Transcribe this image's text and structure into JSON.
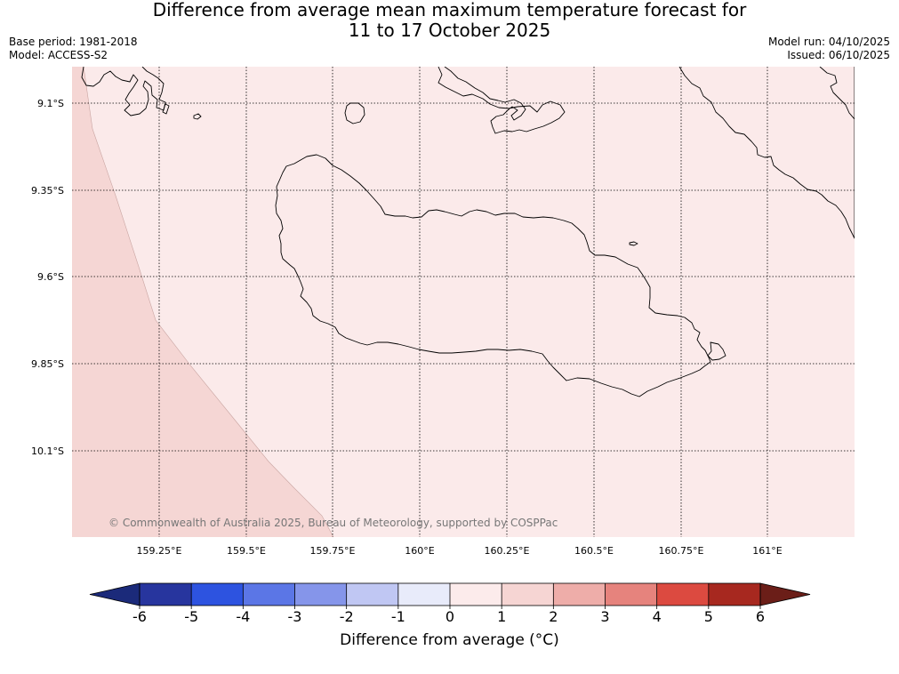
{
  "title": {
    "line1": "Difference from average mean maximum temperature forecast for",
    "line2": "11 to 17 October 2025"
  },
  "meta_left": {
    "base_period": "Base period: 1981-2018",
    "model": "Model: ACCESS-S2"
  },
  "meta_right": {
    "model_run": "Model run: 04/10/2025",
    "issued": "Issued: 06/10/2025"
  },
  "map": {
    "lat_ticks": [
      "9.1°S",
      "9.35°S",
      "9.6°S",
      "9.85°S",
      "10.1°S"
    ],
    "lon_ticks": [
      "159.25°E",
      "159.5°E",
      "159.75°E",
      "160°E",
      "160.25°E",
      "160.5°E",
      "160.75°E",
      "161°E"
    ],
    "copyright": "© Commonwealth of Australia 2025, Bureau of Meteorology, supported by COSPPac",
    "fill_main": "#fbeaea",
    "fill_west": "#f5d6d4",
    "coast_color": "#000000"
  },
  "colorbar": {
    "labels": [
      "-6",
      "-5",
      "-4",
      "-3",
      "-2",
      "-1",
      "0",
      "1",
      "2",
      "3",
      "4",
      "5",
      "6"
    ],
    "colors": [
      "#27359e",
      "#2d53e0",
      "#5b76e6",
      "#8595ea",
      "#c0c7f3",
      "#e8ebfa",
      "#fcebeb",
      "#f6d5d3",
      "#eeada9",
      "#e6837d",
      "#dc4a40",
      "#a7281f"
    ],
    "under_color": "#1b2a7a",
    "over_color": "#6b1e18",
    "title": "Difference from average (°C)"
  }
}
